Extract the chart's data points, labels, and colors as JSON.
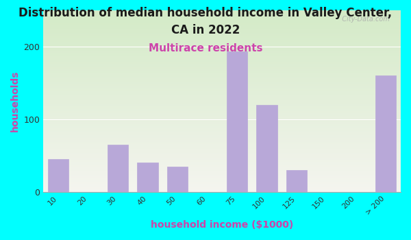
{
  "categories": [
    "10",
    "20",
    "30",
    "40",
    "50",
    "60",
    "75",
    "100",
    "125",
    "150",
    "200",
    "> 200"
  ],
  "values": [
    45,
    0,
    65,
    40,
    35,
    0,
    193,
    120,
    30,
    0,
    0,
    160
  ],
  "bar_color": "#b8a8d8",
  "bar_edgecolor": "#b8a8d8",
  "title_line1": "Distribution of median household income in Valley Center,",
  "title_line2": "CA in 2022",
  "subtitle": "Multirace residents",
  "xlabel": "household income ($1000)",
  "ylabel": "households",
  "ylim": [
    0,
    250
  ],
  "yticks": [
    0,
    100,
    200
  ],
  "background_outer": "#00FFFF",
  "background_inner_top": "#d4ecc8",
  "background_inner_bottom": "#f5f5f0",
  "title_color": "#1a1a1a",
  "subtitle_color": "#cc44aa",
  "axis_label_color": "#cc44aa",
  "watermark": "  City-Data.com",
  "title_fontsize": 12,
  "subtitle_fontsize": 11
}
